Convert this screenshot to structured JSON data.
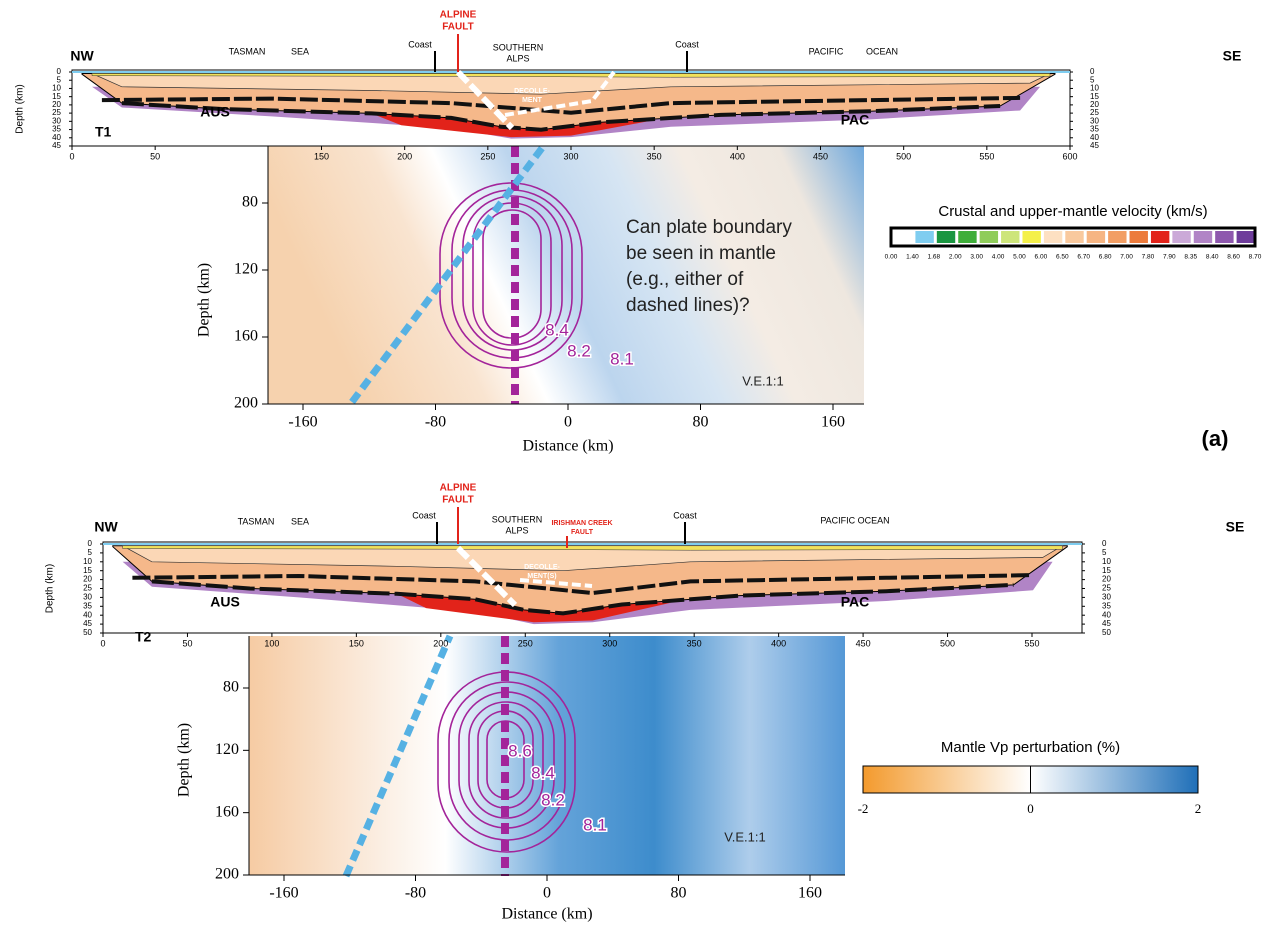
{
  "panels": [
    {
      "profile": {
        "left": "NW",
        "right": "SE",
        "section": "T1",
        "depth_label": "Depth (km)",
        "xticks": [
          0,
          50,
          150,
          200,
          250,
          300,
          350,
          400,
          450,
          500,
          550,
          600
        ],
        "depth_ticks": [
          0,
          5,
          10,
          15,
          20,
          25,
          30,
          35,
          40,
          45
        ],
        "labels": {
          "tasman": "TASMAN",
          "sea": "SEA",
          "coast_w": "Coast",
          "fault": [
            "ALPINE",
            "FAULT"
          ],
          "alps": [
            "SOUTHERN",
            "ALPS"
          ],
          "coast_e": "Coast",
          "pacific": "PACIFIC",
          "ocean": "OCEAN",
          "decollement": [
            "DECOLLE-",
            "MENT"
          ],
          "aus": "AUS",
          "pac": "PAC"
        }
      },
      "mantle": {
        "xlabel": "Distance (km)",
        "ylabel": "Depth (km)",
        "xticks": [
          -160,
          -80,
          0,
          80,
          160
        ],
        "yticks": [
          80,
          120,
          160,
          200
        ],
        "contour_labels": [
          8.4,
          8.2,
          8.1
        ],
        "ve": "V.E.1:1",
        "note": [
          "Can plate boundary",
          "be seen in mantle",
          "(e.g., either of",
          "dashed lines)?"
        ]
      },
      "tag": "(a)"
    },
    {
      "profile": {
        "left": "NW",
        "right": "SE",
        "section": "T2",
        "depth_label": "Depth (km)",
        "xticks": [
          0,
          50,
          100,
          150,
          200,
          250,
          300,
          350,
          400,
          450,
          500,
          550
        ],
        "depth_ticks": [
          0,
          5,
          10,
          15,
          20,
          25,
          30,
          35,
          40,
          45,
          50
        ],
        "labels": {
          "tasman": "TASMAN",
          "sea": "SEA",
          "coast_w": "Coast",
          "fault": [
            "ALPINE",
            "FAULT"
          ],
          "alps": [
            "SOUTHERN",
            "ALPS"
          ],
          "irishman": [
            "IRISHMAN CREEK",
            "FAULT"
          ],
          "coast_e": "Coast",
          "pacific": "PACIFIC OCEAN",
          "decollement": [
            "DECOLLE-",
            "MENT(S)"
          ],
          "aus": "AUS",
          "pac": "PAC"
        }
      },
      "mantle": {
        "xlabel": "Distance (km)",
        "ylabel": "Depth (km)",
        "xticks": [
          -160,
          -80,
          0,
          80,
          160
        ],
        "yticks": [
          80,
          120,
          160,
          200
        ],
        "contour_labels": [
          8.6,
          8.4,
          8.2,
          8.1
        ],
        "ve": "V.E.1:1"
      }
    }
  ],
  "velocity_legend": {
    "title": "Crustal and upper-mantle velocity (km/s)",
    "labels": [
      "0.00",
      "1.40",
      "1.68",
      "2.00",
      "3.00",
      "4.00",
      "5.00",
      "6.00",
      "6.50",
      "6.70",
      "6.80",
      "7.00",
      "7.80",
      "7.90",
      "8.35",
      "8.40",
      "8.60",
      "8.70"
    ],
    "colors": [
      "#ffffff",
      "#7fcdf0",
      "#1a9641",
      "#3fae3a",
      "#8fcc5a",
      "#cde57a",
      "#f4f04a",
      "#fde0c2",
      "#f9c99e",
      "#f6b583",
      "#f29e64",
      "#ec7b3c",
      "#e2231a",
      "#cba9d8",
      "#b184c6",
      "#8e58ae",
      "#6e3c9b"
    ]
  },
  "perturbation_legend": {
    "title": "Mantle Vp perturbation (%)",
    "ticks": [
      -2,
      0,
      2
    ],
    "colors": [
      "#f39a2d",
      "#ffffff",
      "#1f6fb8"
    ]
  }
}
